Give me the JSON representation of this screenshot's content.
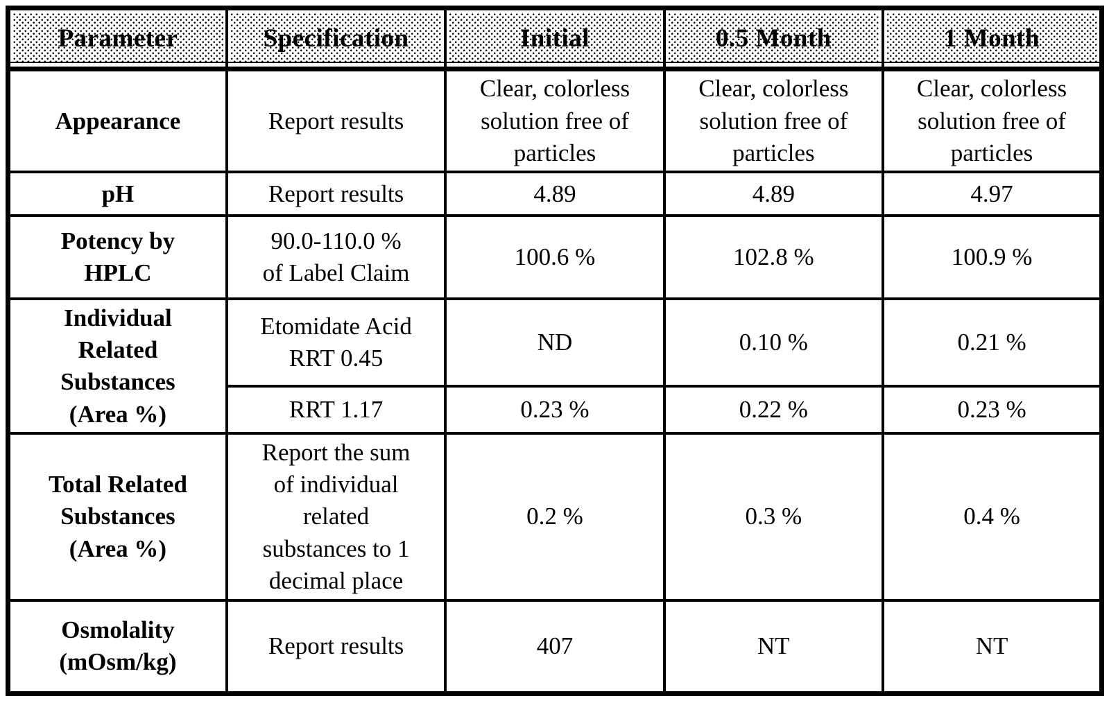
{
  "palette": {
    "text": "#000000",
    "border": "#000000",
    "background": "#ffffff",
    "header_dot_pattern": "#000000"
  },
  "table": {
    "columns": [
      {
        "label": "Parameter"
      },
      {
        "label": "Specification"
      },
      {
        "label": "Initial"
      },
      {
        "label": "0.5 Month"
      },
      {
        "label": "1 Month"
      }
    ],
    "rows": [
      {
        "parameter": "Appearance",
        "specification": "Report results",
        "values": [
          "Clear, colorless\nsolution free of\nparticles",
          "Clear, colorless\nsolution free of\nparticles",
          "Clear, colorless\nsolution free of\nparticles"
        ]
      },
      {
        "parameter": "pH",
        "specification": "Report results",
        "values": [
          "4.89",
          "4.89",
          "4.97"
        ]
      },
      {
        "parameter": "Potency by\nHPLC",
        "specification": "90.0-110.0 %\nof Label Claim",
        "values": [
          "100.6 %",
          "102.8 %",
          "100.9 %"
        ]
      },
      {
        "parameter": "Individual\nRelated\nSubstances\n(Area %)",
        "subrows": [
          {
            "specification": "Etomidate Acid\nRRT 0.45",
            "values": [
              "ND",
              "0.10 %",
              "0.21 %"
            ]
          },
          {
            "specification": "RRT 1.17",
            "values": [
              "0.23 %",
              "0.22 %",
              "0.23 %"
            ]
          }
        ]
      },
      {
        "parameter": "Total Related\nSubstances\n(Area %)",
        "specification": "Report the sum\nof individual\nrelated\nsubstances to 1\ndecimal place",
        "values": [
          "0.2 %",
          "0.3 %",
          "0.4 %"
        ]
      },
      {
        "parameter": "Osmolality\n(mOsm/kg)",
        "specification": "Report results",
        "values": [
          "407",
          "NT",
          "NT"
        ]
      }
    ]
  }
}
